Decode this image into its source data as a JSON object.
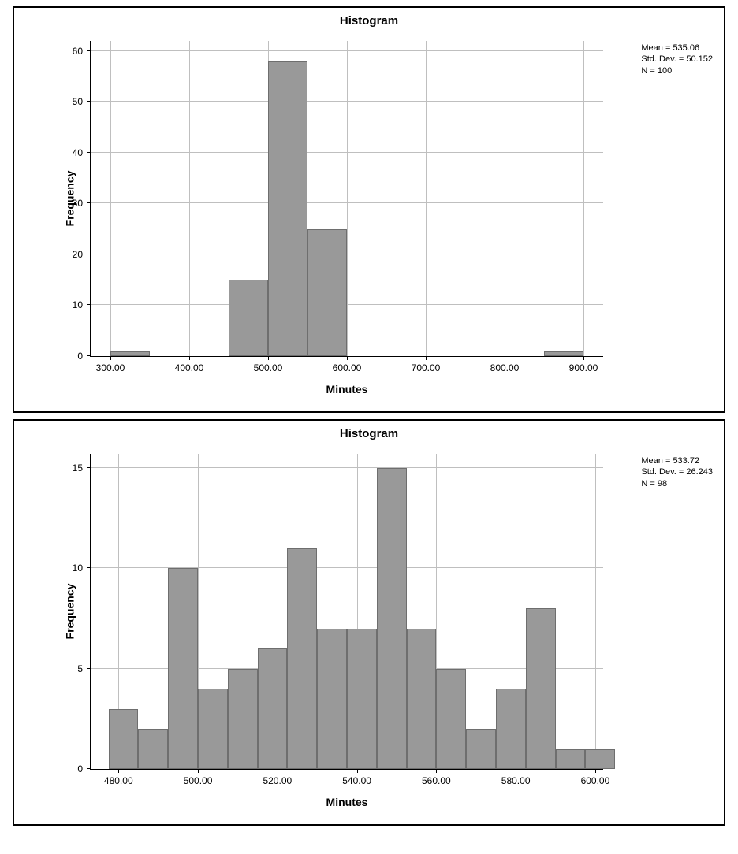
{
  "charts": [
    {
      "type": "histogram",
      "title": "Histogram",
      "xlabel": "Minutes",
      "ylabel": "Frequency",
      "stats": {
        "mean_label": "Mean = 535.06",
        "sd_label": "Std. Dev. = 50.152",
        "n_label": "N = 100"
      },
      "x_min": 275,
      "x_max": 925,
      "y_min": 0,
      "y_max": 62,
      "x_ticks": [
        300,
        400,
        500,
        600,
        700,
        800,
        900
      ],
      "x_tick_labels": [
        "300.00",
        "400.00",
        "500.00",
        "600.00",
        "700.00",
        "800.00",
        "900.00"
      ],
      "y_ticks": [
        0,
        10,
        20,
        30,
        40,
        50,
        60
      ],
      "y_tick_labels": [
        "0",
        "10",
        "20",
        "30",
        "40",
        "50",
        "60"
      ],
      "bin_width": 50,
      "bars": [
        {
          "x_left": 300,
          "value": 1
        },
        {
          "x_left": 450,
          "value": 15
        },
        {
          "x_left": 500,
          "value": 58
        },
        {
          "x_left": 550,
          "value": 25
        },
        {
          "x_left": 850,
          "value": 1
        }
      ],
      "bar_color": "#999999",
      "bar_border_color": "#6e6e6e",
      "grid_color": "#bfbfbf",
      "background_color": "#ffffff",
      "title_fontsize": 15,
      "label_fontsize": 14,
      "tick_fontsize": 12,
      "stats_fontsize": 11
    },
    {
      "type": "histogram",
      "title": "Histogram",
      "xlabel": "Minutes",
      "ylabel": "Frequency",
      "stats": {
        "mean_label": "Mean = 533.72",
        "sd_label": "Std. Dev. = 26.243",
        "n_label": "N = 98"
      },
      "x_min": 473,
      "x_max": 602,
      "y_min": 0,
      "y_max": 15.7,
      "x_ticks": [
        480,
        500,
        520,
        540,
        560,
        580,
        600
      ],
      "x_tick_labels": [
        "480.00",
        "500.00",
        "520.00",
        "540.00",
        "560.00",
        "580.00",
        "600.00"
      ],
      "y_ticks": [
        0,
        5,
        10,
        15
      ],
      "y_tick_labels": [
        "0",
        "5",
        "10",
        "15"
      ],
      "bin_width": 7.5,
      "bars": [
        {
          "x_left": 477.5,
          "value": 3
        },
        {
          "x_left": 485,
          "value": 2
        },
        {
          "x_left": 492.5,
          "value": 10
        },
        {
          "x_left": 500,
          "value": 4
        },
        {
          "x_left": 507.5,
          "value": 5
        },
        {
          "x_left": 515,
          "value": 6
        },
        {
          "x_left": 522.5,
          "value": 11
        },
        {
          "x_left": 530,
          "value": 7
        },
        {
          "x_left": 537.5,
          "value": 7
        },
        {
          "x_left": 545,
          "value": 15
        },
        {
          "x_left": 552.5,
          "value": 7
        },
        {
          "x_left": 560,
          "value": 5
        },
        {
          "x_left": 567.5,
          "value": 2
        },
        {
          "x_left": 575,
          "value": 4
        },
        {
          "x_left": 582.5,
          "value": 8
        },
        {
          "x_left": 590,
          "value": 1
        },
        {
          "x_left": 597.5,
          "value": 1
        }
      ],
      "bar_color": "#999999",
      "bar_border_color": "#6e6e6e",
      "grid_color": "#bfbfbf",
      "background_color": "#ffffff",
      "title_fontsize": 15,
      "label_fontsize": 14,
      "tick_fontsize": 12,
      "stats_fontsize": 11
    }
  ]
}
